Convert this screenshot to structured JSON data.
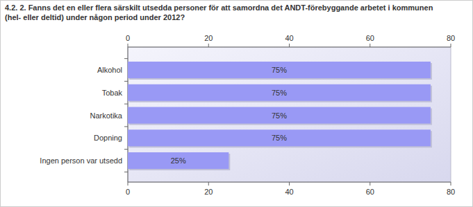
{
  "chart_data": {
    "type": "bar",
    "orientation": "horizontal",
    "title": "4.2. 2. Fanns det en eller flera särskilt utsedda personer för att samordna det ANDT-förebyggande arbetet i kommunen (hel- eller deltid) under någon period under 2012?",
    "categories": [
      "Alkohol",
      "Tobak",
      "Narkotika",
      "Dopning",
      "Ingen person var utsedd"
    ],
    "values": [
      75,
      75,
      75,
      75,
      25
    ],
    "value_labels": [
      "75%",
      "75%",
      "75%",
      "75%",
      "25%"
    ],
    "data_labels": true,
    "color": "#9999f5",
    "xlim": [
      0,
      80
    ],
    "xticks": [
      0,
      20,
      40,
      60,
      80
    ],
    "grid": false
  }
}
